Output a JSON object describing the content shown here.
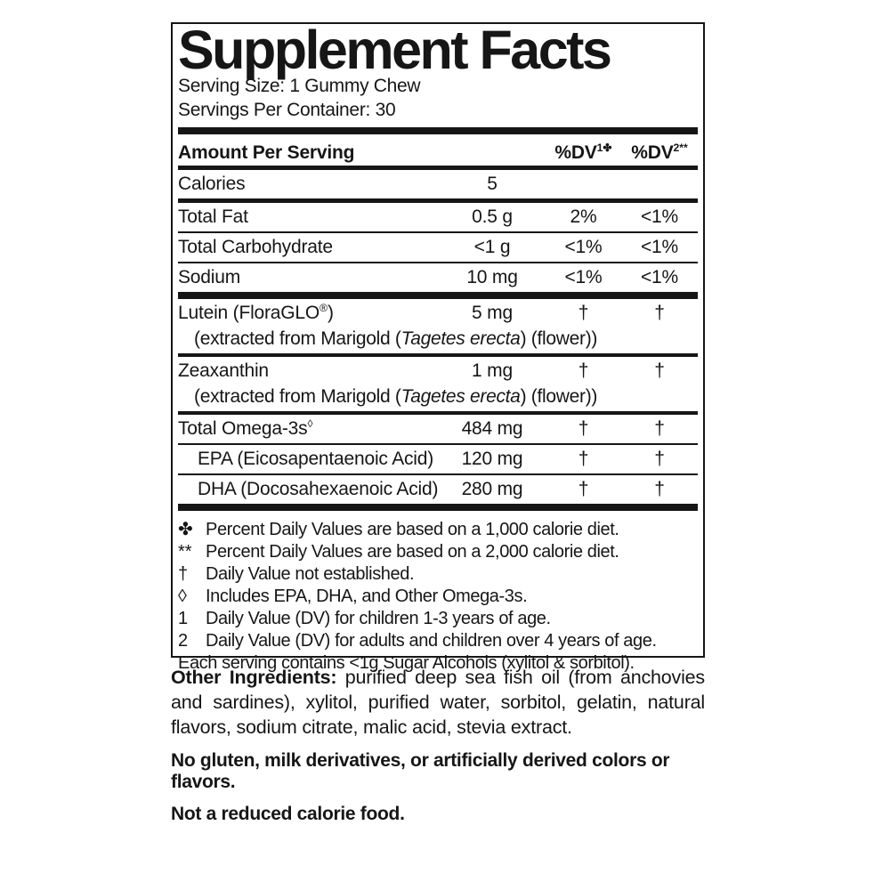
{
  "colors": {
    "ink": "#161616",
    "background": "#ffffff"
  },
  "label": {
    "title": "Supplement Facts",
    "serving_size": "Serving Size: 1 Gummy Chew",
    "servings_per_container": "Servings Per Container: 30",
    "header": {
      "amount": "Amount Per Serving",
      "dv1": "%DV",
      "dv1_sup": "1✤",
      "dv2": "%DV",
      "dv2_sup": "2**"
    },
    "rows": [
      {
        "name": "Calories",
        "sup": "",
        "name_end": "",
        "amount": "5",
        "dv1": "",
        "dv2": ""
      },
      {
        "name": "Total Fat",
        "sup": "",
        "name_end": "",
        "amount": "0.5 g",
        "dv1": "2%",
        "dv2": "<1%"
      },
      {
        "name": "Total Carbohydrate",
        "sup": "",
        "name_end": "",
        "amount": "<1 g",
        "dv1": "<1%",
        "dv2": "<1%"
      },
      {
        "name": "Sodium",
        "sup": "",
        "name_end": "",
        "amount": "10 mg",
        "dv1": "<1%",
        "dv2": "<1%"
      },
      {
        "name": "Lutein (FloraGLO",
        "sup": "®",
        "name_end": ")",
        "amount": "5 mg",
        "dv1": "†",
        "dv2": "†",
        "sub_pre": "(extracted from Marigold (",
        "sub_italic": "Tagetes erecta",
        "sub_post": ") (flower))"
      },
      {
        "name": "Zeaxanthin",
        "sup": "",
        "name_end": "",
        "amount": "1 mg",
        "dv1": "†",
        "dv2": "†",
        "sub_pre": "(extracted from Marigold (",
        "sub_italic": "Tagetes erecta",
        "sub_post": ") (flower))"
      },
      {
        "name": "Total Omega-3s",
        "sup": "◊",
        "name_end": "",
        "amount": "484 mg",
        "dv1": "†",
        "dv2": "†"
      },
      {
        "name": "EPA (Eicosapentaenoic Acid)",
        "sup": "",
        "name_end": "",
        "amount": "120 mg",
        "dv1": "†",
        "dv2": "†"
      },
      {
        "name": "DHA (Docosahexaenoic Acid)",
        "sup": "",
        "name_end": "",
        "amount": "280 mg",
        "dv1": "†",
        "dv2": "†"
      }
    ],
    "footnotes": [
      {
        "marker": "✤",
        "text": "Percent Daily Values are based on a 1,000 calorie diet."
      },
      {
        "marker": "**",
        "text": "Percent Daily Values are based on a 2,000 calorie diet."
      },
      {
        "marker": "†",
        "text": "Daily Value not established."
      },
      {
        "marker": "◊",
        "text": "Includes EPA, DHA, and Other Omega-3s."
      },
      {
        "marker": "1",
        "text": "Daily Value (DV) for children 1-3 years of age."
      },
      {
        "marker": "2",
        "text": "Daily Value (DV) for adults and children over 4 years of age."
      },
      {
        "marker": "",
        "text": "Each serving contains <1g Sugar Alcohols (xylitol & sorbitol)."
      }
    ]
  },
  "other": {
    "ingredients_label": "Other Ingredients:",
    "ingredients_text": "purified deep sea fish oil (from anchovies and sardines), xylitol, purified water, sorbitol, gelatin, natural flavors, sodium citrate, malic acid, stevia extract.",
    "no_gluten": "No gluten, milk derivatives, or artificially derived colors or flavors.",
    "not_reduced": "Not a reduced calorie food."
  }
}
